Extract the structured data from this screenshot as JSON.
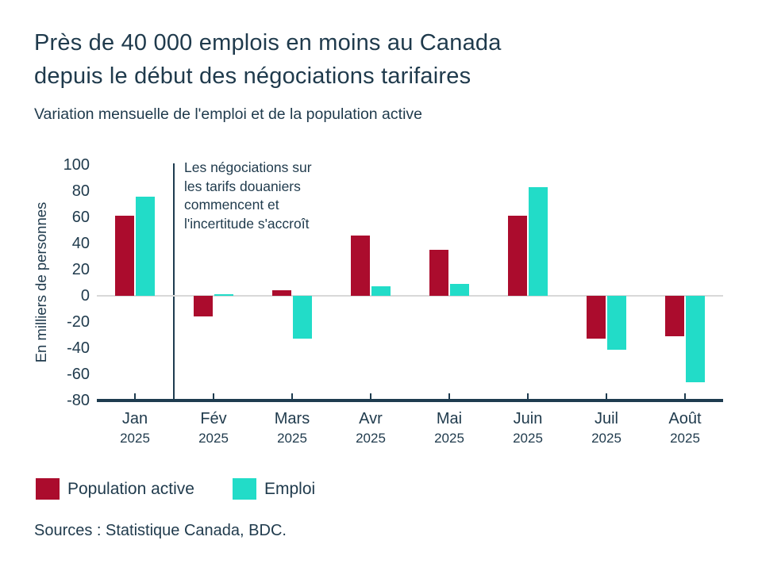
{
  "header": {
    "title": "Près de 40 000 emplois en moins au Canada\ndepuis le début des négociations tarifaires",
    "subtitle": "Variation mensuelle de l'emploi et de la population active"
  },
  "chart_data": {
    "type": "bar",
    "categories": [
      "Jan",
      "Fév",
      "Mars",
      "Avr",
      "Mai",
      "Juin",
      "Juil",
      "Août"
    ],
    "year_label": "2025",
    "series": [
      {
        "name": "Population active",
        "color": "#ab0c2d",
        "values": [
          61,
          -16,
          4,
          46,
          35,
          61,
          -33,
          -31
        ]
      },
      {
        "name": "Emploi",
        "color": "#22dcc8",
        "values": [
          76,
          1,
          -33,
          7,
          9,
          83,
          -41,
          -66
        ]
      }
    ],
    "ylabel": "En milliers de personnes",
    "ylim": [
      -80,
      100
    ],
    "ytick_step": 20,
    "grid": "zero-line-only",
    "legend_position": "bottom-left",
    "annotation": "Les négociations sur\nles tarifs douaniers\ncommencent et\nl'incertitude s'accroît",
    "annotation_marker": "vertical line between Jan 2025 and Fév 2025"
  },
  "footer": {
    "sources": "Sources : Statistique Canada, BDC."
  },
  "colors": {
    "text": "#1f3a4c",
    "axis": "#1e3c50",
    "zero_line": "#d8d8d8",
    "background": "#ffffff"
  }
}
